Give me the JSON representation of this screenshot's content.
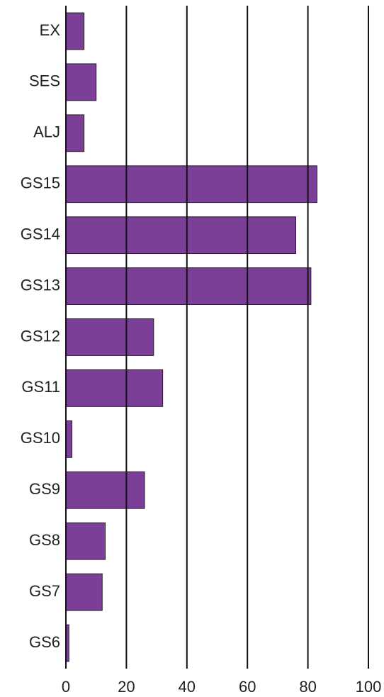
{
  "chart_data": {
    "type": "barh",
    "categories": [
      "EX",
      "SES",
      "ALJ",
      "GS15",
      "GS14",
      "GS13",
      "GS12",
      "GS11",
      "GS10",
      "GS9",
      "GS8",
      "GS7",
      "GS6"
    ],
    "values": [
      6,
      10,
      6,
      83,
      76,
      81,
      29,
      32,
      2,
      26,
      13,
      12,
      1
    ],
    "color": "#7b3f98",
    "xlim": [
      0,
      100
    ],
    "xticks": [
      0,
      20,
      40,
      60,
      80,
      100
    ],
    "grid": true
  }
}
